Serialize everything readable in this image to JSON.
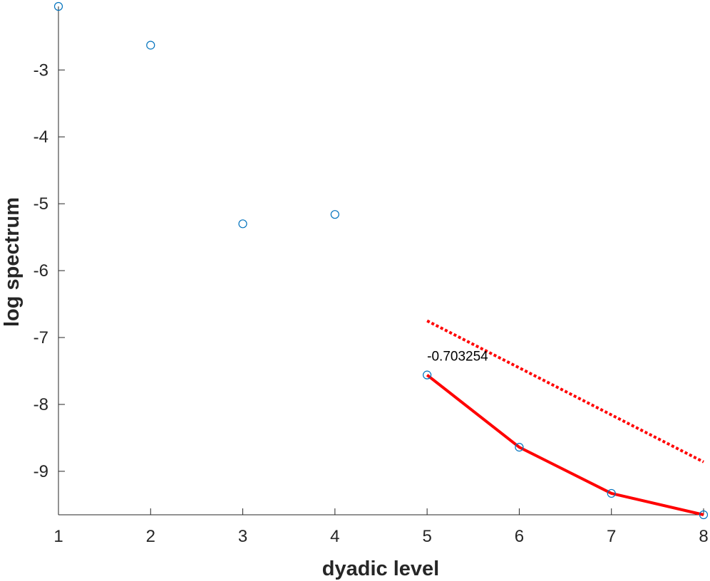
{
  "chart_data": {
    "type": "scatter",
    "title": "",
    "xlabel": "dyadic level",
    "ylabel": "log spectrum",
    "xlim": [
      1,
      8
    ],
    "ylim": [
      -9.65,
      -2.05
    ],
    "xticks": [
      1,
      2,
      3,
      4,
      5,
      6,
      7,
      8
    ],
    "yticks": [
      -9,
      -8,
      -7,
      -6,
      -5,
      -4,
      -3
    ],
    "grid": false,
    "series": [
      {
        "kind": "markers",
        "marker": "circle",
        "x": [
          1,
          2,
          3,
          4,
          5,
          6,
          7,
          8
        ],
        "y": [
          -2.05,
          -2.63,
          -5.3,
          -5.16,
          -7.56,
          -8.64,
          -9.33,
          -9.65
        ]
      },
      {
        "kind": "line",
        "style": "solid",
        "x": [
          5,
          6,
          7,
          8
        ],
        "y": [
          -7.56,
          -8.64,
          -9.33,
          -9.65
        ]
      },
      {
        "kind": "line",
        "style": "dotted",
        "x": [
          5,
          8
        ],
        "y": [
          -6.75,
          -8.86
        ]
      }
    ],
    "annotations": [
      {
        "text": "-0.703254",
        "x": 5,
        "y": -7.27
      }
    ],
    "colors": {
      "markers": "#0072bd",
      "fit": "#ff0000",
      "axis": "#262626"
    }
  }
}
